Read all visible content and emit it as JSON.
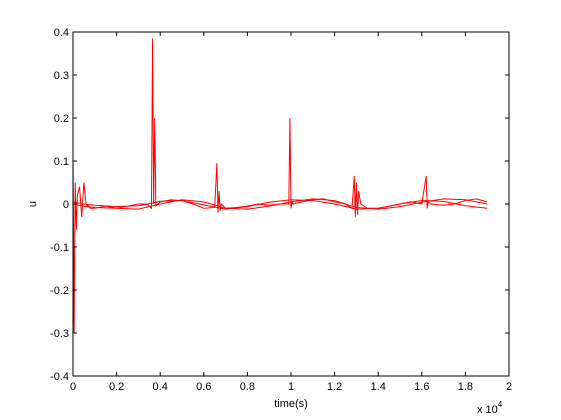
{
  "chart_data": {
    "type": "line",
    "xlabel": "time(s)",
    "ylabel": "u",
    "x_multiplier_label": "x 10",
    "x_multiplier_exponent": "4",
    "xlim": [
      0,
      2
    ],
    "ylim": [
      -0.4,
      0.4
    ],
    "x_ticks": [
      0,
      0.2,
      0.4,
      0.6,
      0.8,
      1,
      1.2,
      1.4,
      1.6,
      1.8,
      2
    ],
    "x_tick_labels": [
      "0",
      "0.2",
      "0.4",
      "0.6",
      "0.8",
      "1",
      "1.2",
      "1.4",
      "1.6",
      "1.8",
      "2"
    ],
    "y_ticks": [
      -0.4,
      -0.3,
      -0.2,
      -0.1,
      0,
      0.1,
      0.2,
      0.3,
      0.4
    ],
    "y_tick_labels": [
      "-0.4",
      "-0.3",
      "-0.2",
      "-0.1",
      "0",
      "0.1",
      "0.2",
      "0.3",
      "0.4"
    ],
    "grid": false,
    "series_color": "#ff0000",
    "series": [
      {
        "x": [
          0,
          0.005,
          0.01,
          0.015,
          0.02,
          0.03,
          0.04,
          0.05,
          0.06,
          0.08,
          0.1,
          0.15,
          0.2,
          0.25,
          0.3,
          0.34,
          0.36,
          0.365,
          0.37,
          0.375,
          0.38,
          0.4,
          0.45,
          0.5,
          0.55,
          0.6,
          0.65,
          0.66,
          0.665,
          0.67,
          0.675,
          0.68,
          0.7,
          0.75,
          0.8,
          0.85,
          0.9,
          0.95,
          0.99,
          0.995,
          1.0,
          1.005,
          1.01,
          1.05,
          1.1,
          1.15,
          1.2,
          1.25,
          1.28,
          1.29,
          1.295,
          1.3,
          1.305,
          1.31,
          1.32,
          1.35,
          1.4,
          1.45,
          1.5,
          1.55,
          1.6,
          1.62,
          1.625,
          1.63,
          1.64,
          1.7,
          1.75,
          1.8,
          1.85,
          1.9
        ],
        "y": [
          0.12,
          -0.3,
          0.05,
          -0.06,
          0.02,
          0.04,
          -0.03,
          0.05,
          0.0,
          -0.01,
          -0.01,
          -0.005,
          -0.01,
          -0.005,
          0.0,
          0.0,
          -0.01,
          0.385,
          0.0,
          0.2,
          -0.005,
          0.005,
          0.01,
          0.008,
          0.0,
          -0.01,
          -0.008,
          0.095,
          -0.02,
          0.03,
          -0.015,
          0.0,
          -0.01,
          -0.008,
          -0.005,
          0.0,
          -0.003,
          0.0,
          0.0,
          0.2,
          -0.01,
          0.005,
          0.0,
          0.005,
          0.01,
          0.012,
          0.005,
          0.0,
          -0.01,
          0.065,
          -0.03,
          0.05,
          -0.025,
          0.03,
          0.0,
          -0.01,
          -0.01,
          -0.005,
          0.0,
          0.005,
          0.0,
          0.065,
          -0.01,
          0.005,
          0.0,
          -0.003,
          0.0,
          0.008,
          0.012,
          0.005
        ]
      },
      {
        "x": [
          0.0,
          0.05,
          0.1,
          0.2,
          0.3,
          0.4,
          0.5,
          0.6,
          0.7,
          0.8,
          0.9,
          1.0,
          1.1,
          1.2,
          1.3,
          1.4,
          1.5,
          1.6,
          1.7,
          1.8,
          1.9
        ],
        "y": [
          0.0,
          -0.005,
          -0.008,
          -0.01,
          -0.012,
          0.0,
          0.01,
          0.005,
          -0.01,
          -0.012,
          -0.005,
          0.005,
          0.012,
          0.008,
          -0.008,
          -0.012,
          -0.006,
          0.004,
          0.012,
          0.01,
          0.0
        ]
      },
      {
        "x": [
          0.0,
          0.05,
          0.1,
          0.2,
          0.3,
          0.4,
          0.5,
          0.6,
          0.7,
          0.8,
          0.9,
          1.0,
          1.1,
          1.2,
          1.3,
          1.4,
          1.5,
          1.6,
          1.7,
          1.8,
          1.9
        ],
        "y": [
          0.005,
          0.0,
          -0.003,
          -0.006,
          -0.004,
          0.006,
          0.008,
          -0.002,
          -0.012,
          -0.006,
          0.004,
          0.01,
          0.008,
          0.0,
          -0.012,
          -0.01,
          0.0,
          0.008,
          0.006,
          -0.004,
          -0.01
        ]
      }
    ]
  }
}
